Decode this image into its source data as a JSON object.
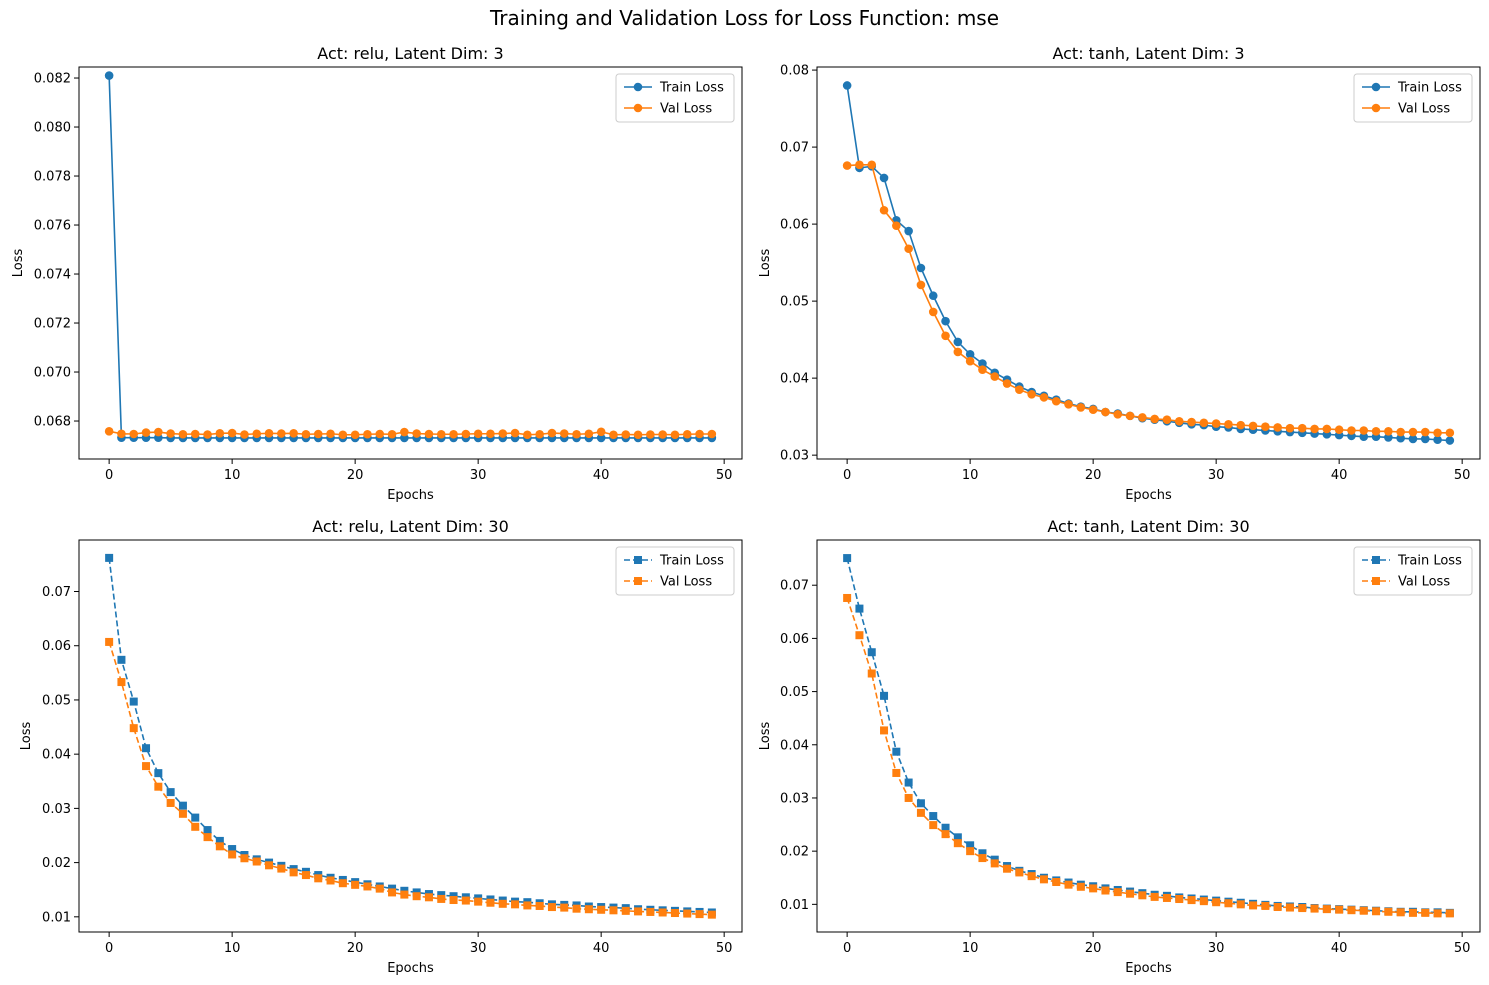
{
  "figure": {
    "title": "Training and Validation Loss for Loss Function: mse"
  },
  "chart_data": [
    {
      "type": "line",
      "title": "Act: relu, Latent Dim: 3",
      "xlabel": "Epochs",
      "ylabel": "Loss",
      "xlim": [
        -2.45,
        51.45
      ],
      "ylim": [
        0.06645,
        0.08245
      ],
      "xticks": [
        0,
        10,
        20,
        30,
        40,
        50
      ],
      "yticks": [
        0.068,
        0.07,
        0.072,
        0.074,
        0.076,
        0.078,
        0.08,
        0.082
      ],
      "ytick_labels": [
        "0.068",
        "0.070",
        "0.072",
        "0.074",
        "0.076",
        "0.078",
        "0.080",
        "0.082"
      ],
      "grid": false,
      "legend": "upper right",
      "marker": "circle",
      "linestyle": "solid",
      "series": [
        {
          "name": "Train Loss",
          "color": "#1f77b4",
          "x": [
            0,
            1,
            2,
            3,
            4,
            5,
            6,
            7,
            8,
            9,
            10,
            11,
            12,
            13,
            14,
            15,
            16,
            17,
            18,
            19,
            20,
            21,
            22,
            23,
            24,
            25,
            26,
            27,
            28,
            29,
            30,
            31,
            32,
            33,
            34,
            35,
            36,
            37,
            38,
            39,
            40,
            41,
            42,
            43,
            44,
            45,
            46,
            47,
            48,
            49
          ],
          "values": [
            0.0821,
            0.06732,
            0.06732,
            0.06732,
            0.06732,
            0.06731,
            0.06731,
            0.06731,
            0.06731,
            0.06731,
            0.06731,
            0.06731,
            0.06731,
            0.06731,
            0.06731,
            0.06731,
            0.06731,
            0.06731,
            0.06731,
            0.06731,
            0.06731,
            0.06731,
            0.06731,
            0.06731,
            0.06731,
            0.06731,
            0.06731,
            0.06731,
            0.06731,
            0.06731,
            0.06731,
            0.06731,
            0.06731,
            0.06731,
            0.06731,
            0.06731,
            0.06731,
            0.06731,
            0.06731,
            0.06731,
            0.06731,
            0.06731,
            0.06731,
            0.06731,
            0.06731,
            0.06731,
            0.06731,
            0.06731,
            0.06731,
            0.06731
          ]
        },
        {
          "name": "Val Loss",
          "color": "#ff7f0e",
          "x": [
            0,
            1,
            2,
            3,
            4,
            5,
            6,
            7,
            8,
            9,
            10,
            11,
            12,
            13,
            14,
            15,
            16,
            17,
            18,
            19,
            20,
            21,
            22,
            23,
            24,
            25,
            26,
            27,
            28,
            29,
            30,
            31,
            32,
            33,
            34,
            35,
            36,
            37,
            38,
            39,
            40,
            41,
            42,
            43,
            44,
            45,
            46,
            47,
            48,
            49
          ],
          "values": [
            0.06758,
            0.06748,
            0.06747,
            0.06753,
            0.06755,
            0.06749,
            0.06746,
            0.06747,
            0.06745,
            0.0675,
            0.06751,
            0.06745,
            0.06748,
            0.0675,
            0.06749,
            0.0675,
            0.06746,
            0.06747,
            0.06748,
            0.06744,
            0.06744,
            0.06746,
            0.06747,
            0.06746,
            0.06755,
            0.06749,
            0.06747,
            0.06746,
            0.06746,
            0.06747,
            0.06748,
            0.06748,
            0.06749,
            0.06751,
            0.06744,
            0.06746,
            0.06751,
            0.06749,
            0.06746,
            0.06748,
            0.06756,
            0.06744,
            0.06745,
            0.06744,
            0.06745,
            0.06745,
            0.06744,
            0.06746,
            0.06747,
            0.06747
          ]
        }
      ]
    },
    {
      "type": "line",
      "title": "Act: tanh, Latent Dim: 3",
      "xlabel": "Epochs",
      "ylabel": "Loss",
      "xlim": [
        -2.45,
        51.45
      ],
      "ylim": [
        0.0295,
        0.0804
      ],
      "xticks": [
        0,
        10,
        20,
        30,
        40,
        50
      ],
      "yticks": [
        0.03,
        0.04,
        0.05,
        0.06,
        0.07,
        0.08
      ],
      "ytick_labels": [
        "0.03",
        "0.04",
        "0.05",
        "0.06",
        "0.07",
        "0.08"
      ],
      "grid": false,
      "legend": "upper right",
      "marker": "circle",
      "linestyle": "solid",
      "series": [
        {
          "name": "Train Loss",
          "color": "#1f77b4",
          "x": [
            0,
            1,
            2,
            3,
            4,
            5,
            6,
            7,
            8,
            9,
            10,
            11,
            12,
            13,
            14,
            15,
            16,
            17,
            18,
            19,
            20,
            21,
            22,
            23,
            24,
            25,
            26,
            27,
            28,
            29,
            30,
            31,
            32,
            33,
            34,
            35,
            36,
            37,
            38,
            39,
            40,
            41,
            42,
            43,
            44,
            45,
            46,
            47,
            48,
            49
          ],
          "values": [
            0.078,
            0.0673,
            0.0675,
            0.066,
            0.0605,
            0.0591,
            0.0543,
            0.0507,
            0.0474,
            0.0447,
            0.0431,
            0.0419,
            0.0407,
            0.0398,
            0.0389,
            0.0382,
            0.0377,
            0.0372,
            0.0367,
            0.0363,
            0.036,
            0.0356,
            0.0354,
            0.0351,
            0.0348,
            0.0346,
            0.0344,
            0.0342,
            0.034,
            0.0339,
            0.0337,
            0.0336,
            0.0334,
            0.0333,
            0.0332,
            0.0331,
            0.033,
            0.0329,
            0.0328,
            0.0327,
            0.0326,
            0.0325,
            0.0324,
            0.0324,
            0.0323,
            0.0322,
            0.0321,
            0.0321,
            0.032,
            0.0319
          ]
        },
        {
          "name": "Val Loss",
          "color": "#ff7f0e",
          "x": [
            0,
            1,
            2,
            3,
            4,
            5,
            6,
            7,
            8,
            9,
            10,
            11,
            12,
            13,
            14,
            15,
            16,
            17,
            18,
            19,
            20,
            21,
            22,
            23,
            24,
            25,
            26,
            27,
            28,
            29,
            30,
            31,
            32,
            33,
            34,
            35,
            36,
            37,
            38,
            39,
            40,
            41,
            42,
            43,
            44,
            45,
            46,
            47,
            48,
            49
          ],
          "values": [
            0.0676,
            0.0677,
            0.0677,
            0.0618,
            0.0598,
            0.0568,
            0.0521,
            0.0486,
            0.0455,
            0.0434,
            0.0422,
            0.0411,
            0.0402,
            0.0393,
            0.0385,
            0.0379,
            0.0375,
            0.037,
            0.0366,
            0.0362,
            0.0359,
            0.0356,
            0.0353,
            0.0351,
            0.0349,
            0.0347,
            0.0346,
            0.0344,
            0.0343,
            0.0342,
            0.0341,
            0.034,
            0.0339,
            0.0338,
            0.0337,
            0.0336,
            0.0335,
            0.0335,
            0.0334,
            0.0334,
            0.0333,
            0.0332,
            0.0332,
            0.0331,
            0.0331,
            0.033,
            0.033,
            0.033,
            0.0329,
            0.0329
          ]
        }
      ]
    },
    {
      "type": "line",
      "title": "Act: relu, Latent Dim: 30",
      "xlabel": "Epochs",
      "ylabel": "Loss",
      "xlim": [
        -2.45,
        51.45
      ],
      "ylim": [
        0.0072,
        0.0795
      ],
      "xticks": [
        0,
        10,
        20,
        30,
        40,
        50
      ],
      "yticks": [
        0.01,
        0.02,
        0.03,
        0.04,
        0.05,
        0.06,
        0.07
      ],
      "ytick_labels": [
        "0.01",
        "0.02",
        "0.03",
        "0.04",
        "0.05",
        "0.06",
        "0.07"
      ],
      "grid": false,
      "legend": "upper right",
      "marker": "square",
      "linestyle": "dashed",
      "series": [
        {
          "name": "Train Loss",
          "color": "#1f77b4",
          "x": [
            0,
            1,
            2,
            3,
            4,
            5,
            6,
            7,
            8,
            9,
            10,
            11,
            12,
            13,
            14,
            15,
            16,
            17,
            18,
            19,
            20,
            21,
            22,
            23,
            24,
            25,
            26,
            27,
            28,
            29,
            30,
            31,
            32,
            33,
            34,
            35,
            36,
            37,
            38,
            39,
            40,
            41,
            42,
            43,
            44,
            45,
            46,
            47,
            48,
            49
          ],
          "values": [
            0.0762,
            0.0574,
            0.0497,
            0.0411,
            0.0365,
            0.033,
            0.0305,
            0.0283,
            0.026,
            0.024,
            0.0225,
            0.0214,
            0.0206,
            0.02,
            0.0194,
            0.0188,
            0.0183,
            0.0177,
            0.0172,
            0.0168,
            0.0164,
            0.016,
            0.0156,
            0.0152,
            0.0148,
            0.0145,
            0.0142,
            0.014,
            0.0138,
            0.0136,
            0.0134,
            0.0132,
            0.013,
            0.0128,
            0.0127,
            0.0125,
            0.0123,
            0.0122,
            0.0121,
            0.0119,
            0.0118,
            0.0117,
            0.0116,
            0.0114,
            0.0113,
            0.0112,
            0.0111,
            0.011,
            0.0109,
            0.0108
          ]
        },
        {
          "name": "Val Loss",
          "color": "#ff7f0e",
          "x": [
            0,
            1,
            2,
            3,
            4,
            5,
            6,
            7,
            8,
            9,
            10,
            11,
            12,
            13,
            14,
            15,
            16,
            17,
            18,
            19,
            20,
            21,
            22,
            23,
            24,
            25,
            26,
            27,
            28,
            29,
            30,
            31,
            32,
            33,
            34,
            35,
            36,
            37,
            38,
            39,
            40,
            41,
            42,
            43,
            44,
            45,
            46,
            47,
            48,
            49
          ],
          "values": [
            0.0607,
            0.0533,
            0.0448,
            0.0378,
            0.034,
            0.031,
            0.029,
            0.0266,
            0.0247,
            0.023,
            0.0215,
            0.0208,
            0.0202,
            0.0195,
            0.0189,
            0.0182,
            0.0177,
            0.0171,
            0.0167,
            0.0162,
            0.0159,
            0.0156,
            0.0152,
            0.0145,
            0.0141,
            0.0138,
            0.0136,
            0.0133,
            0.0131,
            0.013,
            0.0128,
            0.0126,
            0.0124,
            0.0123,
            0.0121,
            0.012,
            0.0118,
            0.0117,
            0.0115,
            0.0114,
            0.0113,
            0.0112,
            0.0111,
            0.011,
            0.0109,
            0.0108,
            0.0107,
            0.0106,
            0.0105,
            0.0104
          ]
        }
      ]
    },
    {
      "type": "line",
      "title": "Act: tanh, Latent Dim: 30",
      "xlabel": "Epochs",
      "ylabel": "Loss",
      "xlim": [
        -2.45,
        51.45
      ],
      "ylim": [
        0.0048,
        0.0785
      ],
      "xticks": [
        0,
        10,
        20,
        30,
        40,
        50
      ],
      "yticks": [
        0.01,
        0.02,
        0.03,
        0.04,
        0.05,
        0.06,
        0.07
      ],
      "ytick_labels": [
        "0.01",
        "0.02",
        "0.03",
        "0.04",
        "0.05",
        "0.06",
        "0.07"
      ],
      "grid": false,
      "legend": "upper right",
      "marker": "square",
      "linestyle": "dashed",
      "series": [
        {
          "name": "Train Loss",
          "color": "#1f77b4",
          "x": [
            0,
            1,
            2,
            3,
            4,
            5,
            6,
            7,
            8,
            9,
            10,
            11,
            12,
            13,
            14,
            15,
            16,
            17,
            18,
            19,
            20,
            21,
            22,
            23,
            24,
            25,
            26,
            27,
            28,
            29,
            30,
            31,
            32,
            33,
            34,
            35,
            36,
            37,
            38,
            39,
            40,
            41,
            42,
            43,
            44,
            45,
            46,
            47,
            48,
            49
          ],
          "values": [
            0.0751,
            0.0656,
            0.0574,
            0.0492,
            0.0387,
            0.0329,
            0.029,
            0.0266,
            0.0244,
            0.0226,
            0.0211,
            0.0196,
            0.0184,
            0.0172,
            0.0163,
            0.0157,
            0.015,
            0.0145,
            0.0141,
            0.0137,
            0.0134,
            0.013,
            0.0127,
            0.0124,
            0.0121,
            0.0118,
            0.0116,
            0.0113,
            0.0111,
            0.0109,
            0.0107,
            0.0105,
            0.0103,
            0.0101,
            0.0099,
            0.0097,
            0.0096,
            0.0095,
            0.0093,
            0.0092,
            0.0091,
            0.009,
            0.0089,
            0.0088,
            0.0087,
            0.0086,
            0.0086,
            0.0085,
            0.0085,
            0.0084
          ]
        },
        {
          "name": "Val Loss",
          "color": "#ff7f0e",
          "x": [
            0,
            1,
            2,
            3,
            4,
            5,
            6,
            7,
            8,
            9,
            10,
            11,
            12,
            13,
            14,
            15,
            16,
            17,
            18,
            19,
            20,
            21,
            22,
            23,
            24,
            25,
            26,
            27,
            28,
            29,
            30,
            31,
            32,
            33,
            34,
            35,
            36,
            37,
            38,
            39,
            40,
            41,
            42,
            43,
            44,
            45,
            46,
            47,
            48,
            49
          ],
          "values": [
            0.0676,
            0.0606,
            0.0534,
            0.0427,
            0.0347,
            0.03,
            0.0272,
            0.0249,
            0.0232,
            0.0215,
            0.02,
            0.0187,
            0.0177,
            0.0167,
            0.016,
            0.0153,
            0.0147,
            0.0142,
            0.0137,
            0.0133,
            0.013,
            0.0126,
            0.0123,
            0.012,
            0.0117,
            0.0114,
            0.0112,
            0.011,
            0.0108,
            0.0106,
            0.0104,
            0.0102,
            0.01,
            0.0098,
            0.0097,
            0.0095,
            0.0094,
            0.0093,
            0.0092,
            0.0091,
            0.009,
            0.0089,
            0.0088,
            0.0087,
            0.0086,
            0.0085,
            0.0084,
            0.0084,
            0.0083,
            0.0083
          ]
        }
      ]
    }
  ]
}
